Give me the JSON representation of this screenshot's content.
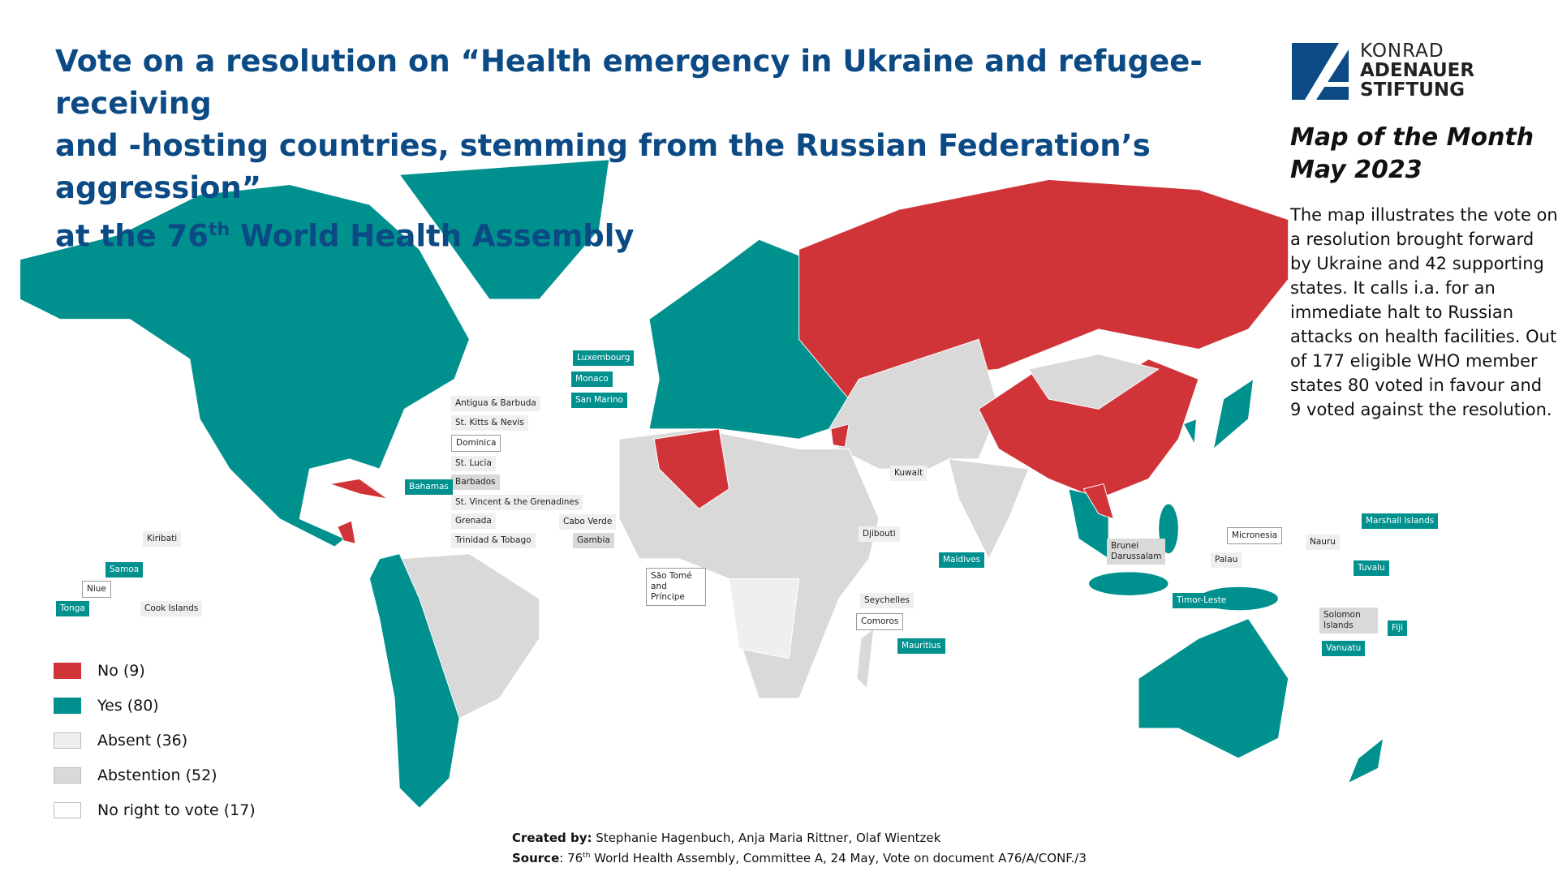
{
  "title": {
    "line1": "Vote on a resolution on “Health emergency in Ukraine and refugee-receiving",
    "line2": "and -hosting countries, stemming from the Russian Federation’s aggression”",
    "line3_pre": "at the 76",
    "line3_sup": "th",
    "line3_post": " World Health Assembly"
  },
  "logo": {
    "line1": "KONRAD",
    "line2": "ADENAUER",
    "line3": "STIFTUNG"
  },
  "side": {
    "heading1": "Map of the Month",
    "heading2": "May 2023",
    "description": "The map illustrates the vote on a resolution brought forward by Ukraine and 42 supporting states. It calls i.a. for an immediate halt to Russian attacks on health facilities. Out of 177 eligible WHO member states 80 voted in favour and 9 voted against the resolution."
  },
  "colors": {
    "no": "#d13438",
    "yes": "#00918f",
    "absent": "#efefef",
    "abstention": "#d9d9d9",
    "no_right": "#ffffff",
    "title": "#0b4a84"
  },
  "legend": [
    {
      "label": "No (9)",
      "status": "no"
    },
    {
      "label": "Yes (80)",
      "status": "yes"
    },
    {
      "label": "Absent (36)",
      "status": "absent"
    },
    {
      "label": "Abstention (52)",
      "status": "abstention"
    },
    {
      "label": "No right to vote (17)",
      "status": "no_right"
    }
  ],
  "country_labels": [
    {
      "name": "Luxembourg",
      "status": "yes"
    },
    {
      "name": "Monaco",
      "status": "yes"
    },
    {
      "name": "San Marino",
      "status": "yes"
    },
    {
      "name": "Antigua & Barbuda",
      "status": "absent"
    },
    {
      "name": "St. Kitts & Nevis",
      "status": "absent"
    },
    {
      "name": "Dominica",
      "status": "no_right"
    },
    {
      "name": "St. Lucia",
      "status": "absent"
    },
    {
      "name": "Barbados",
      "status": "abstention"
    },
    {
      "name": "Bahamas",
      "status": "yes"
    },
    {
      "name": "St. Vincent & the Grenadines",
      "status": "absent"
    },
    {
      "name": "Grenada",
      "status": "absent"
    },
    {
      "name": "Trinidad & Tobago",
      "status": "absent"
    },
    {
      "name": "Cabo Verde",
      "status": "absent"
    },
    {
      "name": "Gambia",
      "status": "abstention"
    },
    {
      "name": "Kiribati",
      "status": "absent"
    },
    {
      "name": "Samoa",
      "status": "yes"
    },
    {
      "name": "Niue",
      "status": "no_right"
    },
    {
      "name": "Tonga",
      "status": "yes"
    },
    {
      "name": "Cook Islands",
      "status": "absent"
    },
    {
      "name": "São Tomé and Príncipe",
      "status": "no_right"
    },
    {
      "name": "Kuwait",
      "status": "absent"
    },
    {
      "name": "Djibouti",
      "status": "absent"
    },
    {
      "name": "Maldives",
      "status": "yes"
    },
    {
      "name": "Seychelles",
      "status": "absent"
    },
    {
      "name": "Comoros",
      "status": "no_right"
    },
    {
      "name": "Mauritius",
      "status": "yes"
    },
    {
      "name": "Brunei Darussalam",
      "status": "abstention"
    },
    {
      "name": "Micronesia",
      "status": "no_right"
    },
    {
      "name": "Nauru",
      "status": "absent"
    },
    {
      "name": "Palau",
      "status": "absent"
    },
    {
      "name": "Marshall Islands",
      "status": "yes"
    },
    {
      "name": "Tuvalu",
      "status": "yes"
    },
    {
      "name": "Timor-Leste",
      "status": "yes"
    },
    {
      "name": "Solomon Islands",
      "status": "abstention"
    },
    {
      "name": "Fiji",
      "status": "yes"
    },
    {
      "name": "Vanuatu",
      "status": "yes"
    }
  ],
  "footer": {
    "created_label": "Created by:",
    "created_value": " Stephanie Hagenbuch, Anja Maria Rittner, Olaf Wientzek",
    "source_label": "Source",
    "source_pre": ": 76",
    "source_sup": "th",
    "source_post": " World Health Assembly, Committee A, 24 May, Vote on document A76/A/CONF./3"
  }
}
